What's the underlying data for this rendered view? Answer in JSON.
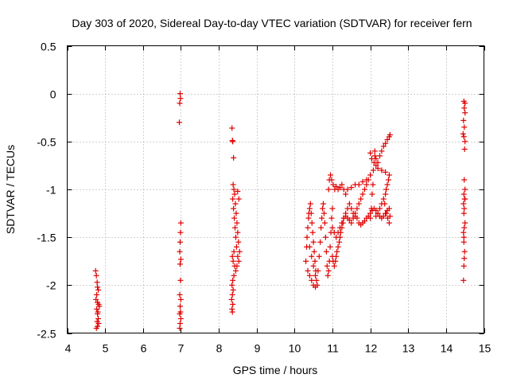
{
  "chart_data": {
    "type": "scatter",
    "title": "Day 303 of 2020, Sidereal Day-to-day VTEC variation (SDTVAR) for receiver fern",
    "xlabel": "GPS time / hours",
    "ylabel": "SDTVAR / TECUs",
    "xlim": [
      4,
      15
    ],
    "ylim": [
      -2.5,
      0.5
    ],
    "xticks": [
      4,
      5,
      6,
      7,
      8,
      9,
      10,
      11,
      12,
      13,
      14,
      15
    ],
    "yticks": [
      -2.5,
      -2,
      -1.5,
      -1,
      -0.5,
      0,
      0.5
    ],
    "xtick_labels": [
      "4",
      "5",
      "6",
      "7",
      "8",
      "9",
      "10",
      "11",
      "12",
      "13",
      "14",
      "15"
    ],
    "ytick_labels": [
      "-2.5",
      "-2",
      "-1.5",
      "-1",
      "-0.5",
      "0",
      "0.5"
    ],
    "grid": true,
    "marker": "+",
    "marker_color": "#e00000",
    "series": [
      {
        "name": "SDTVAR",
        "points": [
          [
            4.75,
            -1.85
          ],
          [
            4.77,
            -1.9
          ],
          [
            4.79,
            -1.97
          ],
          [
            4.8,
            -2.02
          ],
          [
            4.82,
            -2.05
          ],
          [
            4.78,
            -2.1
          ],
          [
            4.76,
            -2.15
          ],
          [
            4.8,
            -2.18
          ],
          [
            4.83,
            -2.2
          ],
          [
            4.78,
            -2.25
          ],
          [
            4.8,
            -2.3
          ],
          [
            4.82,
            -2.35
          ],
          [
            4.79,
            -2.38
          ],
          [
            4.83,
            -2.4
          ],
          [
            4.8,
            -2.43
          ],
          [
            4.77,
            -2.45
          ],
          [
            4.85,
            -2.22
          ],
          [
            4.81,
            -2.28
          ],
          [
            6.98,
            0.0
          ],
          [
            6.99,
            -0.05
          ],
          [
            6.97,
            -0.1
          ],
          [
            6.96,
            -0.3
          ],
          [
            7.0,
            -1.35
          ],
          [
            6.99,
            -1.45
          ],
          [
            6.98,
            -1.55
          ],
          [
            6.97,
            -1.65
          ],
          [
            7.0,
            -1.73
          ],
          [
            6.98,
            -1.78
          ],
          [
            6.99,
            -1.95
          ],
          [
            6.97,
            -2.1
          ],
          [
            7.0,
            -2.15
          ],
          [
            6.98,
            -2.22
          ],
          [
            6.99,
            -2.28
          ],
          [
            6.97,
            -2.3
          ],
          [
            7.0,
            -2.35
          ],
          [
            6.98,
            -2.4
          ],
          [
            6.97,
            -2.45
          ],
          [
            8.35,
            -0.36
          ],
          [
            8.36,
            -0.49
          ],
          [
            8.37,
            -0.5
          ],
          [
            8.39,
            -0.67
          ],
          [
            8.38,
            -0.95
          ],
          [
            8.4,
            -1.0
          ],
          [
            8.42,
            -1.05
          ],
          [
            8.37,
            -1.1
          ],
          [
            8.44,
            -1.15
          ],
          [
            8.39,
            -1.2
          ],
          [
            8.46,
            -1.25
          ],
          [
            8.41,
            -1.3
          ],
          [
            8.48,
            -1.35
          ],
          [
            8.43,
            -1.4
          ],
          [
            8.5,
            -1.45
          ],
          [
            8.45,
            -1.5
          ],
          [
            8.52,
            -1.55
          ],
          [
            8.47,
            -1.6
          ],
          [
            8.4,
            -1.65
          ],
          [
            8.36,
            -1.7
          ],
          [
            8.38,
            -1.75
          ],
          [
            8.42,
            -1.8
          ],
          [
            8.5,
            -1.7
          ],
          [
            8.53,
            -1.75
          ],
          [
            8.48,
            -1.8
          ],
          [
            8.45,
            -1.85
          ],
          [
            8.4,
            -1.9
          ],
          [
            8.37,
            -1.95
          ],
          [
            8.35,
            -2.0
          ],
          [
            8.38,
            -2.05
          ],
          [
            8.36,
            -2.1
          ],
          [
            8.34,
            -2.15
          ],
          [
            8.37,
            -2.2
          ],
          [
            8.35,
            -2.25
          ],
          [
            8.36,
            -2.28
          ],
          [
            8.55,
            -1.65
          ],
          [
            8.5,
            -1.02
          ],
          [
            8.53,
            -1.1
          ],
          [
            10.3,
            -1.75
          ],
          [
            10.32,
            -1.6
          ],
          [
            10.33,
            -1.5
          ],
          [
            10.35,
            -1.4
          ],
          [
            10.37,
            -1.3
          ],
          [
            10.38,
            -1.25
          ],
          [
            10.4,
            -1.2
          ],
          [
            10.42,
            -1.15
          ],
          [
            10.44,
            -1.25
          ],
          [
            10.46,
            -1.35
          ],
          [
            10.48,
            -1.45
          ],
          [
            10.5,
            -1.55
          ],
          [
            10.52,
            -1.65
          ],
          [
            10.54,
            -1.75
          ],
          [
            10.56,
            -1.85
          ],
          [
            10.58,
            -1.95
          ],
          [
            10.6,
            -2.0
          ],
          [
            10.55,
            -1.9
          ],
          [
            10.5,
            -1.8
          ],
          [
            10.45,
            -1.7
          ],
          [
            10.4,
            -1.6
          ],
          [
            10.35,
            -1.85
          ],
          [
            10.4,
            -1.9
          ],
          [
            10.45,
            -1.95
          ],
          [
            10.5,
            -2.0
          ],
          [
            10.55,
            -2.02
          ],
          [
            10.62,
            -1.85
          ],
          [
            10.65,
            -1.7
          ],
          [
            10.68,
            -1.55
          ],
          [
            10.7,
            -1.4
          ],
          [
            10.72,
            -1.3
          ],
          [
            10.74,
            -1.2
          ],
          [
            10.76,
            -1.15
          ],
          [
            10.78,
            -1.25
          ],
          [
            10.8,
            -1.35
          ],
          [
            10.82,
            -1.5
          ],
          [
            10.84,
            -1.65
          ],
          [
            10.86,
            -1.8
          ],
          [
            10.88,
            -1.9
          ],
          [
            10.9,
            -1.85
          ],
          [
            10.92,
            -1.75
          ],
          [
            10.94,
            -1.6
          ],
          [
            10.96,
            -1.45
          ],
          [
            10.98,
            -1.3
          ],
          [
            11.0,
            -1.2
          ],
          [
            10.9,
            -1.0
          ],
          [
            10.92,
            -0.9
          ],
          [
            10.95,
            -0.85
          ],
          [
            10.98,
            -0.9
          ],
          [
            11.02,
            -0.95
          ],
          [
            11.06,
            -1.0
          ],
          [
            11.1,
            -0.97
          ],
          [
            11.15,
            -1.0
          ],
          [
            11.2,
            -0.98
          ],
          [
            11.25,
            -0.95
          ],
          [
            11.3,
            -1.0
          ],
          [
            11.35,
            -1.05
          ],
          [
            11.4,
            -1.0
          ],
          [
            11.5,
            -0.98
          ],
          [
            11.6,
            -0.95
          ],
          [
            11.7,
            -0.95
          ],
          [
            11.8,
            -0.92
          ],
          [
            11.9,
            -0.9
          ],
          [
            12.0,
            -0.85
          ],
          [
            11.0,
            -1.4
          ],
          [
            11.05,
            -1.45
          ],
          [
            11.1,
            -1.5
          ],
          [
            11.15,
            -1.45
          ],
          [
            11.2,
            -1.4
          ],
          [
            11.25,
            -1.35
          ],
          [
            11.3,
            -1.3
          ],
          [
            11.35,
            -1.25
          ],
          [
            11.4,
            -1.2
          ],
          [
            11.45,
            -1.15
          ],
          [
            11.5,
            -1.2
          ],
          [
            11.55,
            -1.25
          ],
          [
            11.6,
            -1.28
          ],
          [
            11.65,
            -1.3
          ],
          [
            11.7,
            -1.35
          ],
          [
            11.75,
            -1.37
          ],
          [
            11.8,
            -1.35
          ],
          [
            11.85,
            -1.33
          ],
          [
            11.9,
            -1.3
          ],
          [
            11.95,
            -1.28
          ],
          [
            12.0,
            -1.25
          ],
          [
            12.05,
            -1.22
          ],
          [
            12.1,
            -1.2
          ],
          [
            12.15,
            -1.22
          ],
          [
            12.2,
            -1.25
          ],
          [
            12.25,
            -1.28
          ],
          [
            12.3,
            -1.3
          ],
          [
            12.35,
            -1.28
          ],
          [
            12.4,
            -1.25
          ],
          [
            12.45,
            -1.22
          ],
          [
            12.5,
            -1.2
          ],
          [
            11.0,
            -1.7
          ],
          [
            11.02,
            -1.75
          ],
          [
            11.05,
            -1.8
          ],
          [
            11.08,
            -1.75
          ],
          [
            11.1,
            -1.7
          ],
          [
            11.12,
            -1.65
          ],
          [
            11.15,
            -1.6
          ],
          [
            11.18,
            -1.55
          ],
          [
            11.2,
            -1.5
          ],
          [
            11.22,
            -1.45
          ],
          [
            11.25,
            -1.4
          ],
          [
            11.28,
            -1.35
          ],
          [
            11.3,
            -1.3
          ],
          [
            11.35,
            -1.28
          ],
          [
            11.4,
            -1.3
          ],
          [
            11.45,
            -1.32
          ],
          [
            11.5,
            -1.35
          ],
          [
            11.55,
            -1.3
          ],
          [
            11.6,
            -1.25
          ],
          [
            11.65,
            -1.2
          ],
          [
            11.7,
            -1.15
          ],
          [
            11.75,
            -1.1
          ],
          [
            11.8,
            -1.05
          ],
          [
            11.85,
            -1.0
          ],
          [
            11.9,
            -0.95
          ],
          [
            11.95,
            -0.9
          ],
          [
            12.0,
            -1.3
          ],
          [
            12.03,
            -1.2
          ],
          [
            12.05,
            -1.05
          ],
          [
            12.07,
            -0.95
          ],
          [
            12.08,
            -0.8
          ],
          [
            12.1,
            -0.72
          ],
          [
            12.12,
            -0.65
          ],
          [
            12.0,
            -0.62
          ],
          [
            12.04,
            -0.68
          ],
          [
            12.15,
            -0.75
          ],
          [
            12.2,
            -0.78
          ],
          [
            12.3,
            -0.8
          ],
          [
            12.4,
            -0.82
          ],
          [
            12.5,
            -0.85
          ],
          [
            12.48,
            -0.9
          ],
          [
            12.45,
            -0.95
          ],
          [
            12.42,
            -1.0
          ],
          [
            12.4,
            -1.05
          ],
          [
            12.35,
            -1.1
          ],
          [
            12.3,
            -1.15
          ],
          [
            12.25,
            -1.2
          ],
          [
            12.2,
            -1.25
          ],
          [
            12.15,
            -1.28
          ],
          [
            12.12,
            -0.6
          ],
          [
            12.15,
            -0.68
          ],
          [
            12.2,
            -0.72
          ],
          [
            12.25,
            -0.65
          ],
          [
            12.3,
            -0.6
          ],
          [
            12.35,
            -0.55
          ],
          [
            12.4,
            -0.52
          ],
          [
            12.45,
            -0.48
          ],
          [
            12.5,
            -0.45
          ],
          [
            12.52,
            -0.43
          ],
          [
            12.38,
            -1.15
          ],
          [
            12.42,
            -1.25
          ],
          [
            12.46,
            -1.3
          ],
          [
            12.5,
            -1.35
          ],
          [
            12.52,
            -1.28
          ],
          [
            14.47,
            -0.08
          ],
          [
            14.5,
            -0.1
          ],
          [
            14.48,
            -0.15
          ],
          [
            14.5,
            -0.2
          ],
          [
            14.46,
            -0.28
          ],
          [
            14.48,
            -0.35
          ],
          [
            14.45,
            -0.42
          ],
          [
            14.47,
            -0.45
          ],
          [
            14.5,
            -0.5
          ],
          [
            14.49,
            -0.58
          ],
          [
            14.48,
            -0.9
          ],
          [
            14.5,
            -1.0
          ],
          [
            14.47,
            -1.05
          ],
          [
            14.49,
            -1.1
          ],
          [
            14.46,
            -1.15
          ],
          [
            14.48,
            -1.2
          ],
          [
            14.47,
            -1.25
          ],
          [
            14.5,
            -1.35
          ],
          [
            14.48,
            -1.4
          ],
          [
            14.46,
            -1.45
          ],
          [
            14.47,
            -1.55
          ],
          [
            14.49,
            -1.65
          ],
          [
            14.48,
            -1.72
          ],
          [
            14.47,
            -1.8
          ],
          [
            14.46,
            -1.95
          ],
          [
            14.47,
            -1.5
          ],
          [
            14.5,
            -1.1
          ]
        ]
      }
    ]
  }
}
